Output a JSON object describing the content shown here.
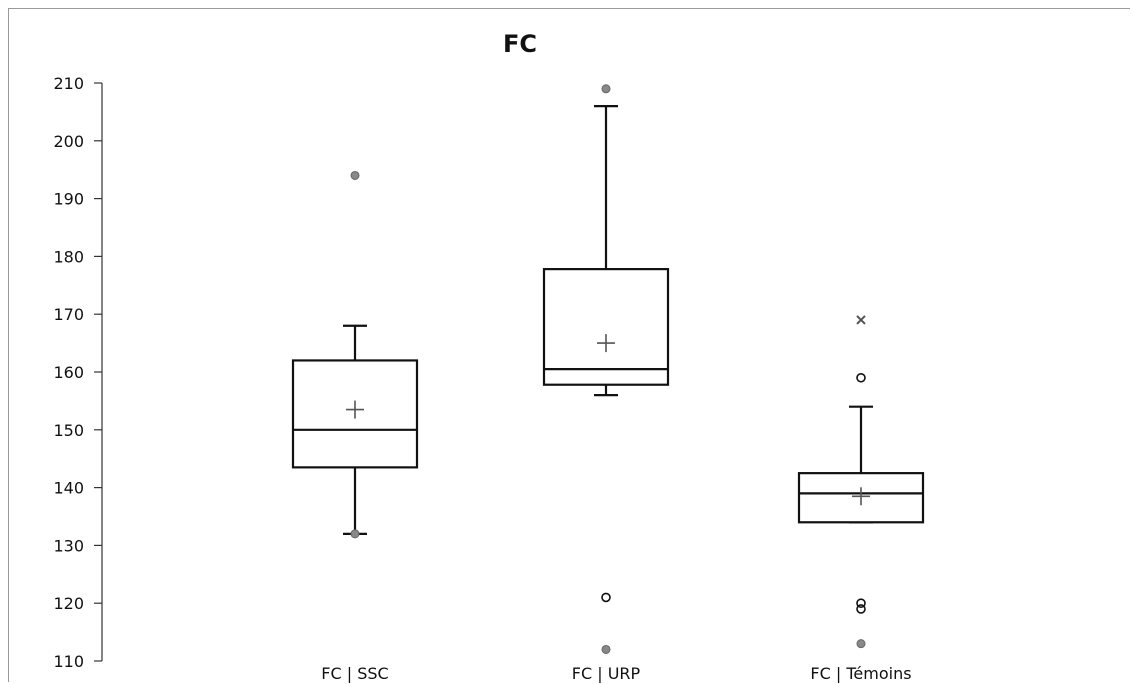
{
  "chart_data": {
    "type": "box",
    "title": "FC",
    "xlabel": "",
    "ylabel": "",
    "ylim": [
      110,
      210
    ],
    "yticks": [
      110,
      120,
      130,
      140,
      150,
      160,
      170,
      180,
      190,
      200,
      210
    ],
    "categories": [
      "FC | SSC",
      "FC | URP",
      "FC | Témoins"
    ],
    "boxes": [
      {
        "category": "FC | SSC",
        "whisker_low": 132,
        "q1": 143.5,
        "median": 150,
        "q3": 162,
        "whisker_high": 168,
        "mean": 153.5,
        "outliers": [
          {
            "value": 194,
            "marker": "dot"
          },
          {
            "value": 132,
            "marker": "dot"
          }
        ]
      },
      {
        "category": "FC | URP",
        "whisker_low": 156,
        "q1": 157.8,
        "median": 160.5,
        "q3": 177.8,
        "whisker_high": 206,
        "mean": 165,
        "outliers": [
          {
            "value": 209,
            "marker": "dot"
          },
          {
            "value": 121,
            "marker": "circle"
          },
          {
            "value": 112,
            "marker": "dot"
          }
        ]
      },
      {
        "category": "FC | Témoins",
        "whisker_low": 134,
        "q1": 134,
        "median": 139,
        "q3": 142.5,
        "whisker_high": 154,
        "mean": 138.5,
        "outliers": [
          {
            "value": 169,
            "marker": "x"
          },
          {
            "value": 159,
            "marker": "circle"
          },
          {
            "value": 120,
            "marker": "circle"
          },
          {
            "value": 119,
            "marker": "circle"
          },
          {
            "value": 113,
            "marker": "dot"
          }
        ]
      }
    ],
    "grid": false,
    "legend": "none"
  },
  "colors": {
    "box_stroke": "#111111",
    "mean_marker": "#555555",
    "outlier_dot": "#888888"
  }
}
